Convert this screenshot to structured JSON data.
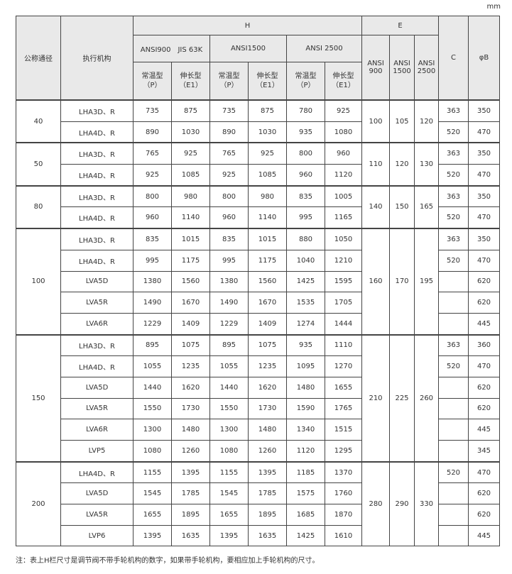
{
  "unit": "mm",
  "header": {
    "dn": "公称通径",
    "actuator": "执行机构",
    "h": "H",
    "e": "E",
    "c": "C",
    "b": "φB",
    "h_classes": [
      "ANSI900　JIS 63K",
      "ANSI1500",
      "ANSI 2500"
    ],
    "sub": [
      {
        "type": "常温型",
        "code": "（P）"
      },
      {
        "type": "伸长型",
        "code": "（E1）"
      }
    ],
    "e_classes": [
      [
        "ANSI",
        "900"
      ],
      [
        "ANSI",
        "1500"
      ],
      [
        "ANSI",
        "2500"
      ]
    ]
  },
  "groups": [
    {
      "dn": "40",
      "e": [
        "100",
        "105",
        "120"
      ],
      "rows": [
        {
          "a": "LHA3D、R",
          "h": [
            "735",
            "875",
            "735",
            "875",
            "780",
            "925"
          ],
          "c": "363",
          "b": "350"
        },
        {
          "a": "LHA4D、R",
          "h": [
            "890",
            "1030",
            "890",
            "1030",
            "935",
            "1080"
          ],
          "c": "520",
          "b": "470"
        }
      ]
    },
    {
      "dn": "50",
      "e": [
        "110",
        "120",
        "130"
      ],
      "rows": [
        {
          "a": "LHA3D、R",
          "h": [
            "765",
            "925",
            "765",
            "925",
            "800",
            "960"
          ],
          "c": "363",
          "b": "350"
        },
        {
          "a": "LHA4D、R",
          "h": [
            "925",
            "1085",
            "925",
            "1085",
            "960",
            "1120"
          ],
          "c": "520",
          "b": "470"
        }
      ]
    },
    {
      "dn": "80",
      "e": [
        "140",
        "150",
        "165"
      ],
      "rows": [
        {
          "a": "LHA3D、R",
          "h": [
            "800",
            "980",
            "800",
            "980",
            "835",
            "1005"
          ],
          "c": "363",
          "b": "350"
        },
        {
          "a": "LHA4D、R",
          "h": [
            "960",
            "1140",
            "960",
            "1140",
            "995",
            "1165"
          ],
          "c": "520",
          "b": "470"
        }
      ]
    },
    {
      "dn": "100",
      "e": [
        "160",
        "170",
        "195"
      ],
      "rows": [
        {
          "a": "LHA3D、R",
          "h": [
            "835",
            "1015",
            "835",
            "1015",
            "880",
            "1050"
          ],
          "c": "363",
          "b": "350"
        },
        {
          "a": "LHA4D、R",
          "h": [
            "995",
            "1175",
            "995",
            "1175",
            "1040",
            "1210"
          ],
          "c": "520",
          "b": "470"
        },
        {
          "a": "LVA5D",
          "h": [
            "1380",
            "1560",
            "1380",
            "1560",
            "1425",
            "1595"
          ],
          "c": "",
          "b": "620"
        },
        {
          "a": "LVA5R",
          "h": [
            "1490",
            "1670",
            "1490",
            "1670",
            "1535",
            "1705"
          ],
          "c": "",
          "b": "620"
        },
        {
          "a": "LVA6R",
          "h": [
            "1229",
            "1409",
            "1229",
            "1409",
            "1274",
            "1444"
          ],
          "c": "",
          "b": "445"
        }
      ]
    },
    {
      "dn": "150",
      "e": [
        "210",
        "225",
        "260"
      ],
      "rows": [
        {
          "a": "LHA3D、R",
          "h": [
            "895",
            "1075",
            "895",
            "1075",
            "935",
            "1110"
          ],
          "c": "363",
          "b": "360"
        },
        {
          "a": "LHA4D、R",
          "h": [
            "1055",
            "1235",
            "1055",
            "1235",
            "1095",
            "1270"
          ],
          "c": "520",
          "b": "470"
        },
        {
          "a": "LVA5D",
          "h": [
            "1440",
            "1620",
            "1440",
            "1620",
            "1480",
            "1655"
          ],
          "c": "",
          "b": "620"
        },
        {
          "a": "LVA5R",
          "h": [
            "1550",
            "1730",
            "1550",
            "1730",
            "1590",
            "1765"
          ],
          "c": "",
          "b": "620"
        },
        {
          "a": "LVA6R",
          "h": [
            "1300",
            "1480",
            "1300",
            "1480",
            "1340",
            "1515"
          ],
          "c": "",
          "b": "445"
        },
        {
          "a": "LVP5",
          "h": [
            "1080",
            "1260",
            "1080",
            "1260",
            "1120",
            "1295"
          ],
          "c": "",
          "b": "345"
        }
      ]
    },
    {
      "dn": "200",
      "e": [
        "280",
        "290",
        "330"
      ],
      "rows": [
        {
          "a": "LHA4D、R",
          "h": [
            "1155",
            "1395",
            "1155",
            "1395",
            "1185",
            "1370"
          ],
          "c": "520",
          "b": "470"
        },
        {
          "a": "LVA5D",
          "h": [
            "1545",
            "1785",
            "1545",
            "1785",
            "1575",
            "1760"
          ],
          "c": "",
          "b": "620"
        },
        {
          "a": "LVA5R",
          "h": [
            "1655",
            "1895",
            "1655",
            "1895",
            "1685",
            "1870"
          ],
          "c": "",
          "b": "620"
        },
        {
          "a": "LVP6",
          "h": [
            "1395",
            "1635",
            "1395",
            "1635",
            "1425",
            "1610"
          ],
          "c": "",
          "b": "445"
        }
      ]
    }
  ],
  "note": "注：表上H栏尺寸是调节阀不带手轮机构的数字，如果带手轮机构，要相应加上手轮机构的尺寸。"
}
